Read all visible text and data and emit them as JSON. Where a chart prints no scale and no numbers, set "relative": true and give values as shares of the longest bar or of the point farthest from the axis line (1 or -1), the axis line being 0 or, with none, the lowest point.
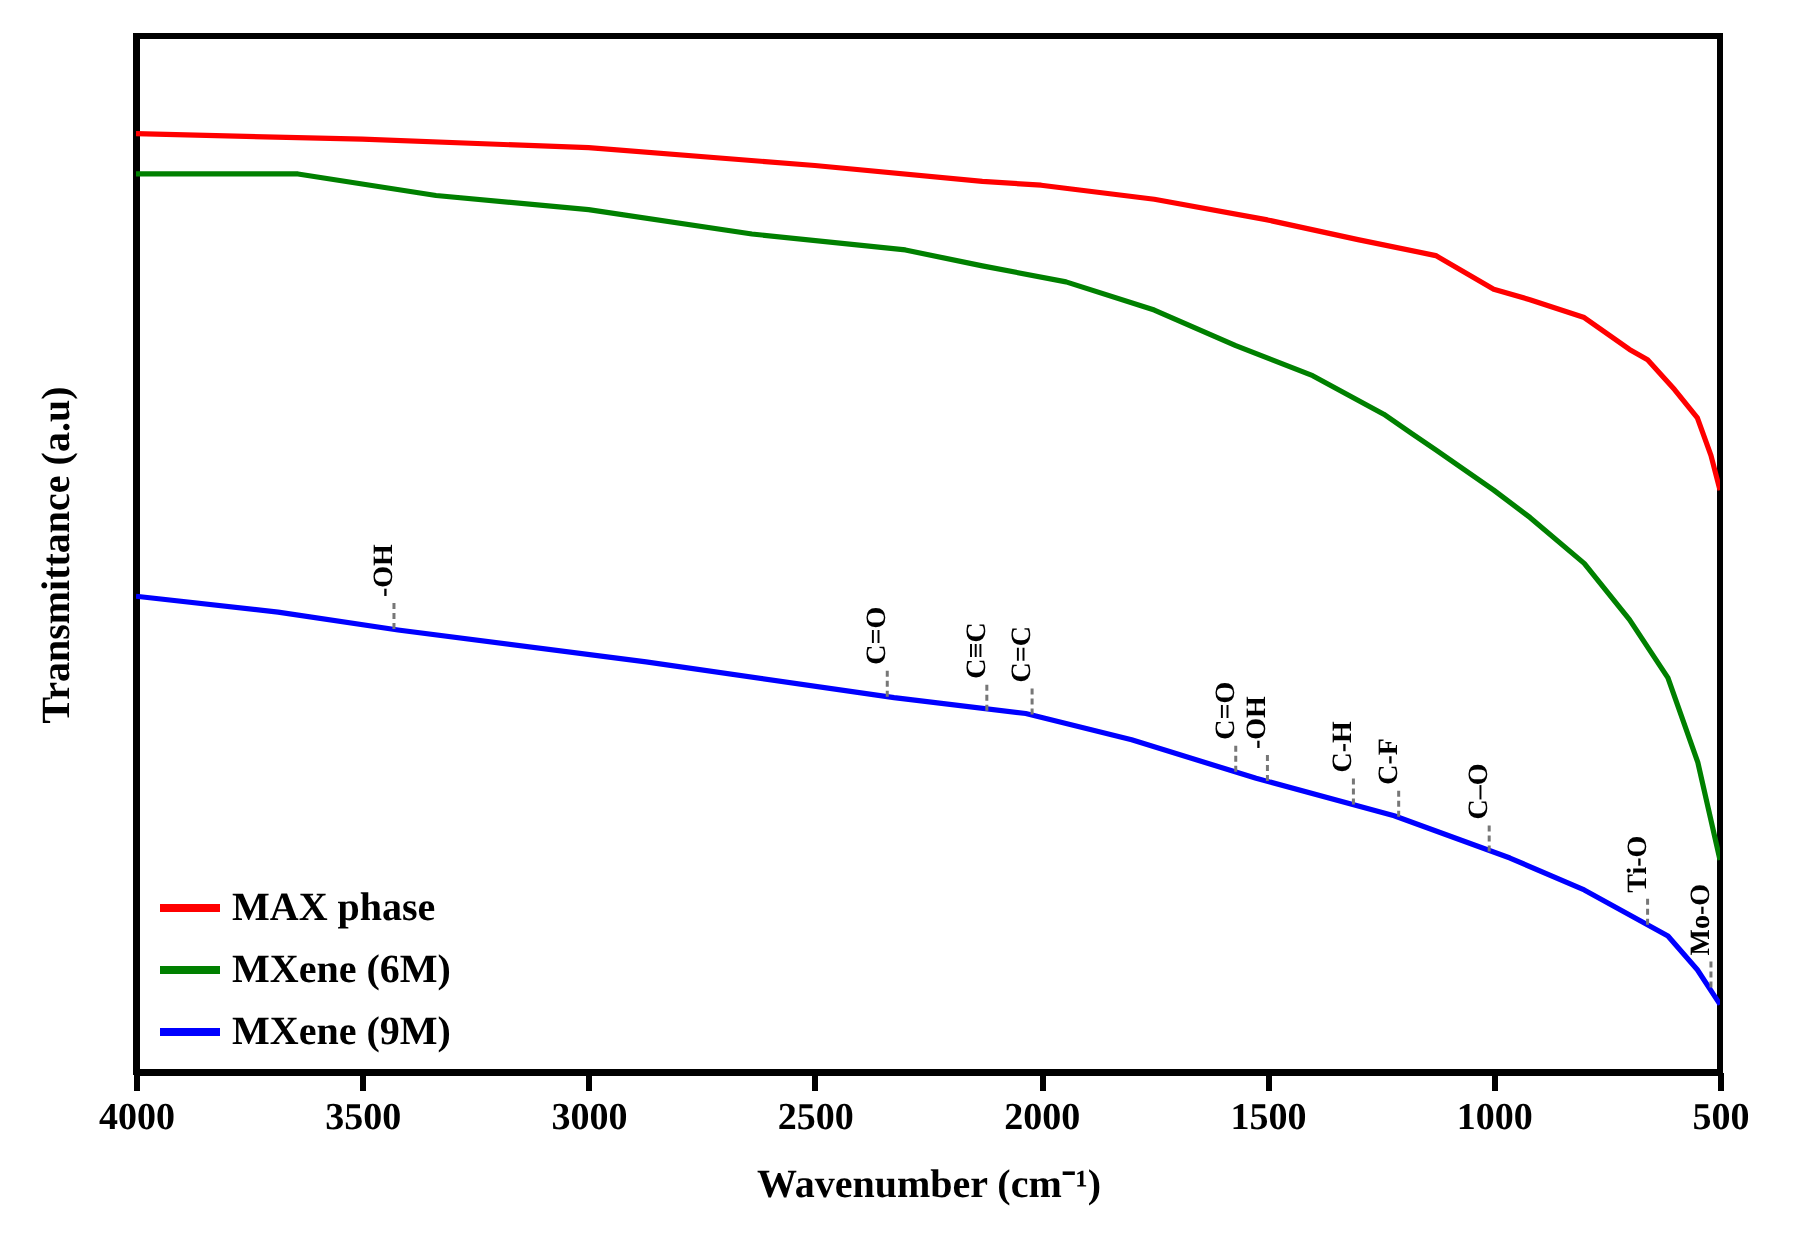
{
  "chart_data": {
    "type": "line",
    "relative": true,
    "xlabel": "Wavenumber (cm⁻¹)",
    "ylabel": "Transmittance (a.u)",
    "xlim": [
      4000,
      500
    ],
    "xticks": [
      4000,
      3500,
      3000,
      2500,
      2000,
      1500,
      1000,
      500
    ],
    "grid": false,
    "legend": "bottom left",
    "line_style": "solid",
    "marker": "none",
    "series": [
      {
        "name": "MAX phase",
        "color": "#ff0000",
        "x": [
          4000,
          3500,
          3000,
          2500,
          2130,
          2000,
          1750,
          1500,
          1300,
          1128,
          1000,
          920,
          800,
          700,
          660,
          600,
          550,
          520,
          500
        ],
        "values": [
          1.0,
          0.994,
          0.985,
          0.966,
          0.949,
          0.945,
          0.93,
          0.908,
          0.887,
          0.87,
          0.834,
          0.823,
          0.804,
          0.77,
          0.759,
          0.727,
          0.697,
          0.657,
          0.62
        ]
      },
      {
        "name": "MXene (6M)",
        "color": "#008000",
        "x": [
          4000,
          3642,
          3337,
          3000,
          2639,
          2300,
          2130,
          1945,
          1750,
          1570,
          1400,
          1243,
          1180,
          1128,
          1000,
          920,
          800,
          700,
          615,
          549,
          500
        ],
        "values": [
          0.957,
          0.957,
          0.934,
          0.919,
          0.893,
          0.876,
          0.859,
          0.842,
          0.812,
          0.774,
          0.742,
          0.701,
          0.68,
          0.663,
          0.62,
          0.591,
          0.542,
          0.482,
          0.42,
          0.33,
          0.226
        ]
      },
      {
        "name": "MXene (9M)",
        "color": "#0000ff",
        "x": [
          4000,
          3686,
          3421,
          2873,
          2325,
          2034,
          1800,
          1525,
          1220,
          964,
          800,
          615,
          550,
          500
        ],
        "values": [
          0.507,
          0.49,
          0.471,
          0.437,
          0.399,
          0.382,
          0.354,
          0.313,
          0.273,
          0.228,
          0.194,
          0.145,
          0.109,
          0.072
        ]
      }
    ],
    "annotations": [
      {
        "text": "-OH",
        "x": 3430,
        "y": 0.472
      },
      {
        "text": "C=O",
        "x": 2340,
        "y": 0.4
      },
      {
        "text": "C≡C",
        "x": 2120,
        "y": 0.385
      },
      {
        "text": "C=C",
        "x": 2020,
        "y": 0.381
      },
      {
        "text": "C=O",
        "x": 1570,
        "y": 0.32
      },
      {
        "text": "-OH",
        "x": 1500,
        "y": 0.31
      },
      {
        "text": "C-H",
        "x": 1310,
        "y": 0.285
      },
      {
        "text": "C-F",
        "x": 1210,
        "y": 0.272
      },
      {
        "text": "C–O",
        "x": 1010,
        "y": 0.235
      },
      {
        "text": "Ti-O",
        "x": 660,
        "y": 0.157
      },
      {
        "text": "Mo-O",
        "x": 520,
        "y": 0.09
      }
    ]
  }
}
